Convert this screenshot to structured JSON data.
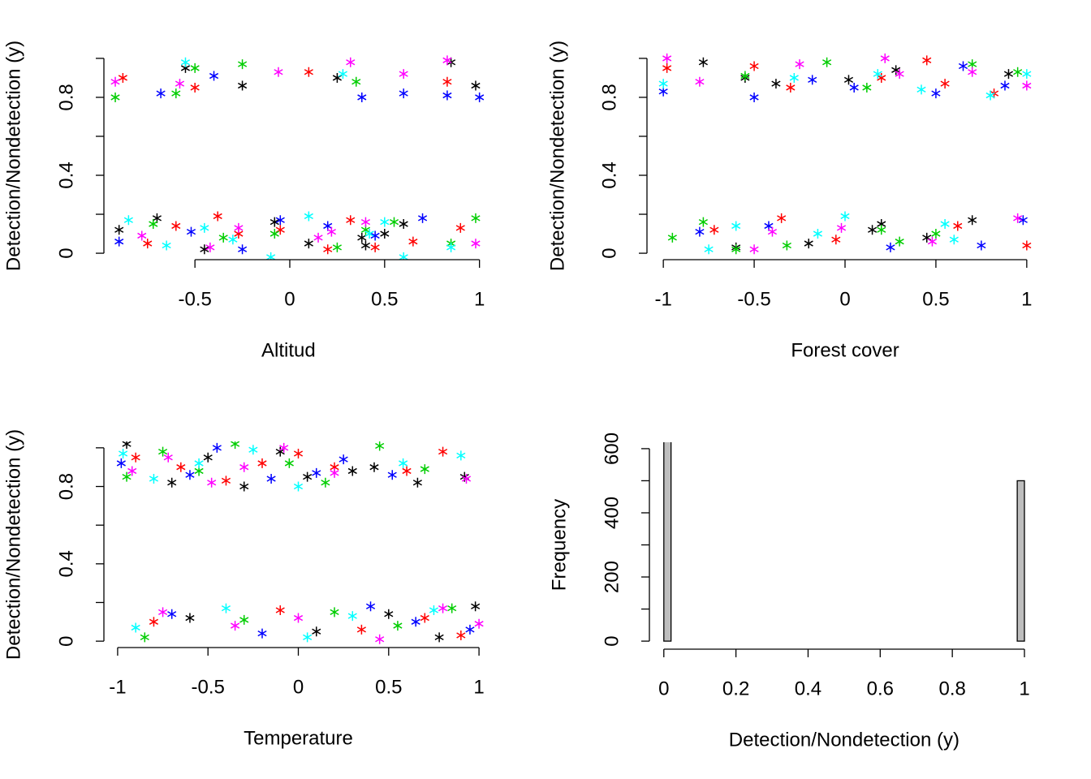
{
  "chart_data": [
    {
      "type": "scatter",
      "x_label": "Altitud",
      "y_label": "Detection/Nondetection (y)",
      "xlim": [
        -0.98,
        1.04
      ],
      "ylim": [
        -0.033,
        1.033
      ],
      "xticks": [
        -0.5,
        0.0,
        0.5,
        1.0
      ],
      "yticks": [
        0.0,
        0.4,
        0.8
      ],
      "yticks_minor": [
        0.2,
        0.6,
        1.0
      ],
      "series": [
        {
          "color": "#000000",
          "x": [
            -0.9,
            -0.7,
            -0.55,
            -0.25,
            0.1,
            0.38,
            0.6,
            0.85,
            -0.45,
            0.25,
            0.5,
            0.98,
            -0.08,
            0.4
          ],
          "y": [
            0.12,
            0.18,
            0.95,
            0.86,
            0.05,
            0.08,
            0.15,
            0.98,
            0.02,
            0.9,
            0.1,
            0.86,
            0.16,
            0.04
          ]
        },
        {
          "color": "#ff0000",
          "x": [
            -0.88,
            -0.75,
            -0.6,
            -0.5,
            -0.27,
            0.1,
            0.2,
            0.32,
            0.65,
            0.83,
            -0.05,
            0.45,
            0.9,
            -0.38
          ],
          "y": [
            0.9,
            0.05,
            0.14,
            0.85,
            0.1,
            0.93,
            0.02,
            0.17,
            0.06,
            0.88,
            0.12,
            0.03,
            0.13,
            0.19
          ]
        },
        {
          "color": "#00cd00",
          "x": [
            -0.92,
            -0.72,
            -0.5,
            -0.35,
            -0.25,
            -0.08,
            0.25,
            0.35,
            0.55,
            0.85,
            0.98,
            -0.6,
            0.4
          ],
          "y": [
            0.8,
            0.15,
            0.95,
            0.08,
            0.97,
            0.1,
            0.03,
            0.88,
            0.16,
            0.05,
            0.18,
            0.82,
            0.12
          ]
        },
        {
          "color": "#0000ff",
          "x": [
            -0.9,
            -0.68,
            -0.52,
            -0.4,
            -0.05,
            0.2,
            0.38,
            0.6,
            0.83,
            1.0,
            -0.25,
            0.45,
            0.7
          ],
          "y": [
            0.06,
            0.82,
            0.11,
            0.91,
            0.17,
            0.14,
            0.8,
            0.82,
            0.81,
            0.8,
            0.02,
            0.09,
            0.18
          ]
        },
        {
          "color": "#00ffff",
          "x": [
            -0.85,
            -0.65,
            -0.45,
            -0.3,
            -0.1,
            0.1,
            0.28,
            0.42,
            0.6,
            0.85,
            0.5,
            -0.55
          ],
          "y": [
            0.17,
            0.04,
            0.13,
            0.07,
            -0.02,
            0.19,
            0.92,
            0.1,
            -0.02,
            0.03,
            0.16,
            0.98
          ]
        },
        {
          "color": "#ff00ff",
          "x": [
            -0.92,
            -0.78,
            -0.58,
            -0.42,
            -0.27,
            -0.06,
            0.15,
            0.32,
            0.6,
            0.83,
            0.98,
            0.4,
            0.22
          ],
          "y": [
            0.88,
            0.09,
            0.87,
            0.03,
            0.13,
            0.93,
            0.08,
            0.98,
            0.92,
            0.99,
            0.05,
            0.16,
            0.11
          ]
        }
      ]
    },
    {
      "type": "scatter",
      "x_label": "Forest cover",
      "y_label": "Detection/Nondetection (y)",
      "xlim": [
        -1.09,
        1.09
      ],
      "ylim": [
        -0.033,
        1.033
      ],
      "xticks": [
        -1.0,
        -0.5,
        0.0,
        0.5,
        1.0
      ],
      "yticks": [
        0.0,
        0.4,
        0.8
      ],
      "yticks_minor": [
        0.2,
        0.6,
        1.0
      ],
      "series": [
        {
          "color": "#000000",
          "x": [
            -0.78,
            -0.55,
            -0.38,
            -0.2,
            0.02,
            0.15,
            0.28,
            0.45,
            0.7,
            0.9,
            -0.6,
            0.2
          ],
          "y": [
            0.98,
            0.9,
            0.87,
            0.05,
            0.89,
            0.12,
            0.94,
            0.08,
            0.17,
            0.92,
            0.03,
            0.15
          ]
        },
        {
          "color": "#ff0000",
          "x": [
            -0.98,
            -0.72,
            -0.5,
            -0.3,
            -0.05,
            0.2,
            0.45,
            0.62,
            0.82,
            1.0,
            -0.35,
            0.55
          ],
          "y": [
            0.95,
            0.12,
            0.96,
            0.85,
            0.07,
            0.9,
            0.99,
            0.14,
            0.82,
            0.04,
            0.18,
            0.87
          ]
        },
        {
          "color": "#00cd00",
          "x": [
            -0.95,
            -0.78,
            -0.55,
            -0.32,
            -0.1,
            0.12,
            0.2,
            0.5,
            0.7,
            0.95,
            -0.6,
            0.3
          ],
          "y": [
            0.08,
            0.16,
            0.91,
            0.04,
            0.98,
            0.85,
            0.12,
            0.1,
            0.97,
            0.93,
            0.02,
            0.06
          ]
        },
        {
          "color": "#0000ff",
          "x": [
            -1.0,
            -0.8,
            -0.5,
            -0.18,
            0.05,
            0.25,
            0.5,
            0.65,
            0.88,
            0.98,
            -0.42,
            0.75
          ],
          "y": [
            0.83,
            0.11,
            0.8,
            0.89,
            0.85,
            0.03,
            0.82,
            0.96,
            0.86,
            0.17,
            0.14,
            0.04
          ]
        },
        {
          "color": "#00ffff",
          "x": [
            -1.0,
            -0.75,
            -0.6,
            -0.28,
            0.0,
            0.18,
            0.42,
            0.6,
            0.8,
            1.0,
            -0.15,
            0.55
          ],
          "y": [
            0.87,
            0.02,
            0.14,
            0.9,
            0.19,
            0.92,
            0.84,
            0.07,
            0.81,
            0.92,
            0.1,
            0.15
          ]
        },
        {
          "color": "#ff00ff",
          "x": [
            -0.98,
            -0.8,
            -0.5,
            -0.25,
            -0.02,
            0.22,
            0.48,
            0.7,
            0.95,
            1.0,
            -0.4,
            0.3
          ],
          "y": [
            1.0,
            0.88,
            0.02,
            0.97,
            0.13,
            1.0,
            0.06,
            0.93,
            0.18,
            0.86,
            0.11,
            0.92
          ]
        }
      ]
    },
    {
      "type": "scatter",
      "x_label": "Temperature",
      "y_label": "Detection/Nondetection (y)",
      "xlim": [
        -1.076,
        1.076
      ],
      "ylim": [
        -0.033,
        1.033
      ],
      "xticks": [
        -1.0,
        -0.5,
        0.0,
        0.5,
        1.0
      ],
      "yticks": [
        0.0,
        0.4,
        0.8
      ],
      "yticks_minor": [
        0.2,
        0.6,
        1.0
      ],
      "series": [
        {
          "color": "#000000",
          "x": [
            -0.95,
            -0.7,
            -0.5,
            -0.3,
            -0.1,
            0.05,
            0.3,
            0.42,
            0.66,
            0.92,
            -0.6,
            0.1,
            0.5,
            0.78,
            0.98
          ],
          "y": [
            1.02,
            0.82,
            0.95,
            0.8,
            0.98,
            0.85,
            0.88,
            0.9,
            0.82,
            0.85,
            0.12,
            0.05,
            0.14,
            0.02,
            0.18
          ]
        },
        {
          "color": "#ff0000",
          "x": [
            -0.9,
            -0.65,
            -0.4,
            -0.2,
            0.0,
            0.2,
            0.6,
            0.8,
            -0.8,
            -0.1,
            0.35,
            0.7,
            0.9
          ],
          "y": [
            0.95,
            0.9,
            0.83,
            0.92,
            0.97,
            0.9,
            0.88,
            0.98,
            0.1,
            0.16,
            0.06,
            0.12,
            0.03
          ]
        },
        {
          "color": "#00cd00",
          "x": [
            -0.95,
            -0.75,
            -0.55,
            -0.35,
            -0.05,
            0.15,
            0.45,
            0.7,
            -0.85,
            -0.3,
            0.2,
            0.55,
            0.85
          ],
          "y": [
            0.85,
            0.98,
            0.88,
            1.02,
            0.92,
            0.82,
            1.01,
            0.89,
            0.02,
            0.11,
            0.15,
            0.08,
            0.17
          ]
        },
        {
          "color": "#0000ff",
          "x": [
            -0.98,
            -0.6,
            -0.45,
            -0.15,
            0.1,
            0.25,
            0.52,
            -0.7,
            -0.2,
            0.4,
            0.65,
            0.95
          ],
          "y": [
            0.92,
            0.86,
            1.0,
            0.84,
            0.87,
            0.94,
            0.86,
            0.14,
            0.04,
            0.18,
            0.1,
            0.06
          ]
        },
        {
          "color": "#00ffff",
          "x": [
            -0.97,
            -0.8,
            -0.55,
            -0.25,
            0.0,
            0.58,
            0.9,
            -0.9,
            -0.4,
            0.05,
            0.3,
            0.75
          ],
          "y": [
            0.97,
            0.84,
            0.92,
            0.99,
            0.8,
            0.92,
            0.96,
            0.07,
            0.17,
            0.02,
            0.13,
            0.16
          ]
        },
        {
          "color": "#ff00ff",
          "x": [
            -0.92,
            -0.72,
            -0.48,
            -0.3,
            -0.08,
            0.2,
            0.93,
            -0.75,
            -0.35,
            0.0,
            0.45,
            0.8,
            1.0
          ],
          "y": [
            0.88,
            0.95,
            0.82,
            0.9,
            1.0,
            0.87,
            0.84,
            0.15,
            0.08,
            0.12,
            0.01,
            0.17,
            0.09
          ]
        }
      ]
    },
    {
      "type": "histogram",
      "x_label": "Detection/Nondetection (y)",
      "y_label": "Frequency",
      "color": "#bebebe",
      "xlim": [
        -0.04,
        1.045
      ],
      "ylim": [
        -20,
        620
      ],
      "xticks": [
        0.0,
        0.2,
        0.4,
        0.6,
        0.8,
        1.0
      ],
      "yticks": [
        0,
        200,
        400,
        600
      ],
      "yticks_minor": [
        100,
        300,
        500
      ],
      "bins": [
        0,
        0.02,
        0.04,
        0.06,
        0.08,
        0.1,
        0.12,
        0.14,
        0.16,
        0.18,
        0.2,
        0.22,
        0.24,
        0.26,
        0.28,
        0.3,
        0.32,
        0.34,
        0.36,
        0.38,
        0.4,
        0.42,
        0.44,
        0.46,
        0.48,
        0.5,
        0.52,
        0.54,
        0.56,
        0.58,
        0.6,
        0.62,
        0.64,
        0.66,
        0.68,
        0.7,
        0.72,
        0.74,
        0.76,
        0.78,
        0.8,
        0.82,
        0.84,
        0.86,
        0.88,
        0.9,
        0.92,
        0.94,
        0.96,
        0.98,
        1.0
      ],
      "counts": [
        700,
        0,
        0,
        0,
        0,
        0,
        0,
        0,
        0,
        0,
        0,
        0,
        0,
        0,
        0,
        0,
        0,
        0,
        0,
        0,
        0,
        0,
        0,
        0,
        0,
        0,
        0,
        0,
        0,
        0,
        0,
        0,
        0,
        0,
        0,
        0,
        0,
        0,
        0,
        0,
        0,
        0,
        0,
        0,
        0,
        0,
        0,
        0,
        0,
        500
      ]
    }
  ]
}
